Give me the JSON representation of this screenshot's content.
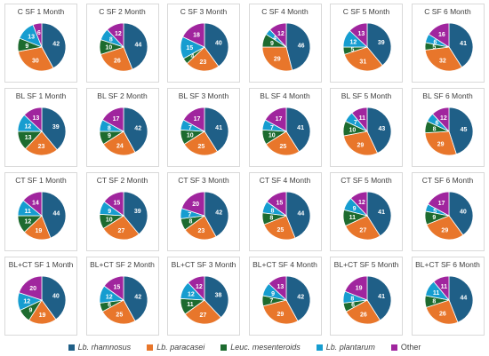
{
  "colors": {
    "Lb. rhamnosus": "#1f5f87",
    "Lb. paracasei": "#e8762b",
    "Leuc. mesenteroids": "#1d6b2f",
    "Lb. plantarum": "#169dd0",
    "Other": "#a0259e"
  },
  "legend": [
    {
      "italic": "Lb. rhamnosus",
      "suffix": "",
      "color": "#1f5f87"
    },
    {
      "italic": "Lb. paracasei",
      "suffix": "",
      "color": "#e8762b"
    },
    {
      "italic": "Leuc. mesenteroids",
      "suffix": "",
      "color": "#1d6b2f"
    },
    {
      "italic": "Lb. plantarum",
      "suffix": "",
      "color": "#169dd0"
    },
    {
      "italic": "",
      "suffix": "Other",
      "color": "#a0259e"
    }
  ],
  "chart_data": [
    {
      "type": "pie",
      "title": "C SF 1 Month",
      "labels": [
        "Lb. rhamnosus",
        "Lb. paracasei",
        "Leuc. mesenteroids",
        "Lb. plantarum",
        "Other"
      ],
      "values": [
        42,
        30,
        9,
        13,
        6
      ]
    },
    {
      "type": "pie",
      "title": "C SF 2 Month",
      "labels": [
        "Lb. rhamnosus",
        "Lb. paracasei",
        "Leuc. mesenteroids",
        "Lb. plantarum",
        "Other"
      ],
      "values": [
        44,
        26,
        10,
        8,
        12
      ]
    },
    {
      "type": "pie",
      "title": "C SF 3 Month",
      "labels": [
        "Lb. rhamnosus",
        "Lb. paracasei",
        "Leuc. mesenteroids",
        "Lb. plantarum",
        "Other"
      ],
      "values": [
        40,
        23,
        4,
        15,
        18
      ]
    },
    {
      "type": "pie",
      "title": "C SF 4 Month",
      "labels": [
        "Lb. rhamnosus",
        "Lb. paracasei",
        "Leuc. mesenteroids",
        "Lb. plantarum",
        "Other"
      ],
      "values": [
        46,
        29,
        9,
        4,
        12
      ]
    },
    {
      "type": "pie",
      "title": "C SF 5 Month",
      "labels": [
        "Lb. rhamnosus",
        "Lb. paracasei",
        "Leuc. mesenteroids",
        "Lb. plantarum",
        "Other"
      ],
      "values": [
        39,
        31,
        5,
        12,
        13
      ]
    },
    {
      "type": "pie",
      "title": "C SF 6 Month",
      "labels": [
        "Lb. rhamnosus",
        "Lb. paracasei",
        "Leuc. mesenteroids",
        "Lb. plantarum",
        "Other"
      ],
      "values": [
        41,
        32,
        5,
        6,
        16
      ]
    },
    {
      "type": "pie",
      "title": "BL SF 1 Month",
      "labels": [
        "Lb. rhamnosus",
        "Lb. paracasei",
        "Leuc. mesenteroids",
        "Lb. plantarum",
        "Other"
      ],
      "values": [
        39,
        23,
        13,
        12,
        13
      ]
    },
    {
      "type": "pie",
      "title": "BL SF 2 Month",
      "labels": [
        "Lb. rhamnosus",
        "Lb. paracasei",
        "Leuc. mesenteroids",
        "Lb. plantarum",
        "Other"
      ],
      "values": [
        42,
        24,
        9,
        8,
        17
      ]
    },
    {
      "type": "pie",
      "title": "BL SF 3 Month",
      "labels": [
        "Lb. rhamnosus",
        "Lb. paracasei",
        "Leuc. mesenteroids",
        "Lb. plantarum",
        "Other"
      ],
      "values": [
        41,
        25,
        10,
        7,
        17
      ]
    },
    {
      "type": "pie",
      "title": "BL SF 4 Month",
      "labels": [
        "Lb. rhamnosus",
        "Lb. paracasei",
        "Leuc. mesenteroids",
        "Lb. plantarum",
        "Other"
      ],
      "values": [
        41,
        25,
        10,
        7,
        17
      ]
    },
    {
      "type": "pie",
      "title": "BL SF 5 Month",
      "labels": [
        "Lb. rhamnosus",
        "Lb. paracasei",
        "Leuc. mesenteroids",
        "Lb. plantarum",
        "Other"
      ],
      "values": [
        43,
        29,
        10,
        7,
        11
      ]
    },
    {
      "type": "pie",
      "title": "BL SF 6 Month",
      "labels": [
        "Lb. rhamnosus",
        "Lb. paracasei",
        "Leuc. mesenteroids",
        "Lb. plantarum",
        "Other"
      ],
      "values": [
        45,
        29,
        8,
        6,
        12
      ]
    },
    {
      "type": "pie",
      "title": "CT SF 1 Month",
      "labels": [
        "Lb. rhamnosus",
        "Lb. paracasei",
        "Leuc. mesenteroids",
        "Lb. plantarum",
        "Other"
      ],
      "values": [
        44,
        19,
        12,
        11,
        14
      ]
    },
    {
      "type": "pie",
      "title": "CT SF 2 Month",
      "labels": [
        "Lb. rhamnosus",
        "Lb. paracasei",
        "Leuc. mesenteroids",
        "Lb. plantarum",
        "Other"
      ],
      "values": [
        39,
        27,
        10,
        9,
        15
      ]
    },
    {
      "type": "pie",
      "title": "CT SF 3 Month",
      "labels": [
        "Lb. rhamnosus",
        "Lb. paracasei",
        "Leuc. mesenteroids",
        "Lb. plantarum",
        "Other"
      ],
      "values": [
        42,
        23,
        8,
        7,
        20
      ]
    },
    {
      "type": "pie",
      "title": "CT SF 4 Month",
      "labels": [
        "Lb. rhamnosus",
        "Lb. paracasei",
        "Leuc. mesenteroids",
        "Lb. plantarum",
        "Other"
      ],
      "values": [
        44,
        25,
        8,
        8,
        15
      ]
    },
    {
      "type": "pie",
      "title": "CT SF 5 Month",
      "labels": [
        "Lb. rhamnosus",
        "Lb. paracasei",
        "Leuc. mesenteroids",
        "Lb. plantarum",
        "Other"
      ],
      "values": [
        41,
        27,
        11,
        9,
        12
      ]
    },
    {
      "type": "pie",
      "title": "CT SF 6 Month",
      "labels": [
        "Lb. rhamnosus",
        "Lb. paracasei",
        "Leuc. mesenteroids",
        "Lb. plantarum",
        "Other"
      ],
      "values": [
        40,
        29,
        9,
        5,
        17
      ]
    },
    {
      "type": "pie",
      "title": "BL+CT SF 1 Month",
      "labels": [
        "Lb. rhamnosus",
        "Lb. paracasei",
        "Leuc. mesenteroids",
        "Lb. plantarum",
        "Other"
      ],
      "values": [
        40,
        19,
        9,
        12,
        20
      ]
    },
    {
      "type": "pie",
      "title": "BL+CT SF 2 Month",
      "labels": [
        "Lb. rhamnosus",
        "Lb. paracasei",
        "Leuc. mesenteroids",
        "Lb. plantarum",
        "Other"
      ],
      "values": [
        42,
        25,
        6,
        12,
        15
      ]
    },
    {
      "type": "pie",
      "title": "BL+CT SF 3 Month",
      "labels": [
        "Lb. rhamnosus",
        "Lb. paracasei",
        "Leuc. mesenteroids",
        "Lb. plantarum",
        "Other"
      ],
      "values": [
        38,
        27,
        11,
        12,
        12
      ]
    },
    {
      "type": "pie",
      "title": "BL+CT SF 4 Month",
      "labels": [
        "Lb. rhamnosus",
        "Lb. paracasei",
        "Leuc. mesenteroids",
        "Lb. plantarum",
        "Other"
      ],
      "values": [
        42,
        29,
        7,
        9,
        13
      ]
    },
    {
      "type": "pie",
      "title": "BL+CT SF 5 Month",
      "labels": [
        "Lb. rhamnosus",
        "Lb. paracasei",
        "Leuc. mesenteroids",
        "Lb. plantarum",
        "Other"
      ],
      "values": [
        41,
        26,
        6,
        8,
        19
      ]
    },
    {
      "type": "pie",
      "title": "BL+CT SF 6 Month",
      "labels": [
        "Lb. rhamnosus",
        "Lb. paracasei",
        "Leuc. mesenteroids",
        "Lb. plantarum",
        "Other"
      ],
      "values": [
        44,
        26,
        8,
        11,
        11
      ]
    }
  ]
}
